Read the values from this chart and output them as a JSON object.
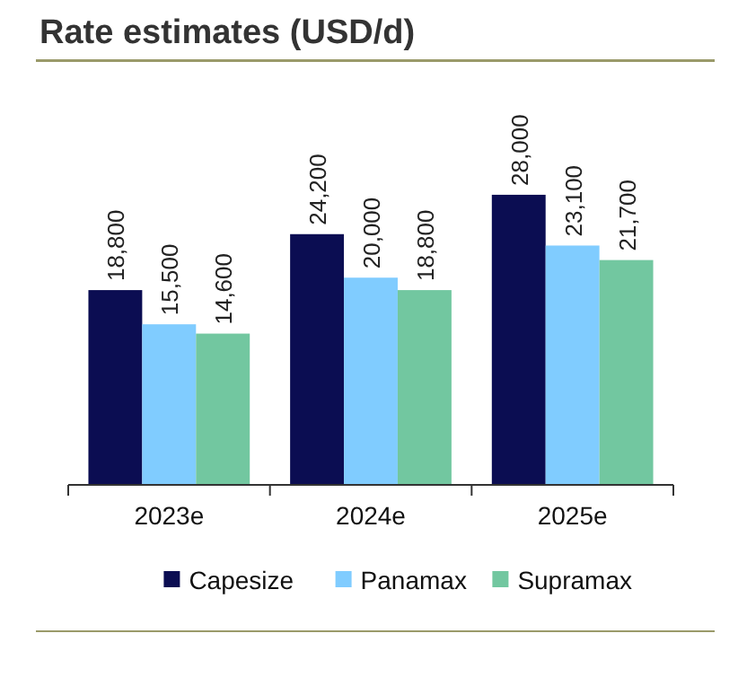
{
  "chart_data": {
    "type": "bar",
    "title": "Rate estimates (USD/d)",
    "categories": [
      "2023e",
      "2024e",
      "2025e"
    ],
    "series": [
      {
        "name": "Capesize",
        "color": "#0b0d52",
        "values": [
          18800,
          24200,
          28000
        ],
        "value_labels": [
          "18,800",
          "24,200",
          "28,000"
        ]
      },
      {
        "name": "Panamax",
        "color": "#80ccff",
        "values": [
          15500,
          20000,
          23100
        ],
        "value_labels": [
          "15,500",
          "20,000",
          "23,100"
        ]
      },
      {
        "name": "Supramax",
        "color": "#72c7a0",
        "values": [
          14600,
          18800,
          21700
        ],
        "value_labels": [
          "14,600",
          "18,800",
          "21,700"
        ]
      }
    ],
    "legend": "bottom"
  }
}
